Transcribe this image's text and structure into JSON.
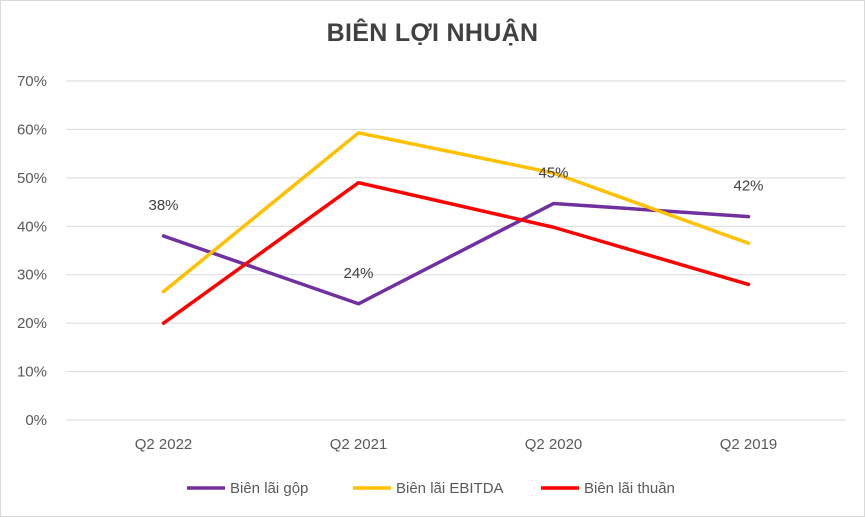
{
  "chart_data": {
    "type": "line",
    "title": "BIÊN LỢI NHUẬN",
    "categories": [
      "Q2 2022",
      "Q2 2021",
      "Q2 2020",
      "Q2 2019"
    ],
    "ylim": [
      0,
      0.7
    ],
    "yticks": [
      {
        "value": 0,
        "label": "0%"
      },
      {
        "value": 0.1,
        "label": "10%"
      },
      {
        "value": 0.2,
        "label": "20%"
      },
      {
        "value": 0.3,
        "label": "30%"
      },
      {
        "value": 0.4,
        "label": "40%"
      },
      {
        "value": 0.5,
        "label": "50%"
      },
      {
        "value": 0.6,
        "label": "60%"
      },
      {
        "value": 0.7,
        "label": "70%"
      }
    ],
    "grid": "horizontal",
    "legend": "bottom",
    "series": [
      {
        "name": "Biên lãi gộp",
        "color": "#7030A0",
        "values": [
          0.38,
          0.24,
          0.447,
          0.42
        ],
        "data_labels": [
          "38%",
          "24%",
          "45%",
          "42%"
        ]
      },
      {
        "name": "Biên lãi EBITDA",
        "color": "#FFC000",
        "values": [
          0.265,
          0.593,
          0.51,
          0.365
        ]
      },
      {
        "name": "Biên lãi thuần",
        "color": "#FF0000",
        "values": [
          0.2,
          0.49,
          0.398,
          0.28
        ]
      }
    ]
  }
}
